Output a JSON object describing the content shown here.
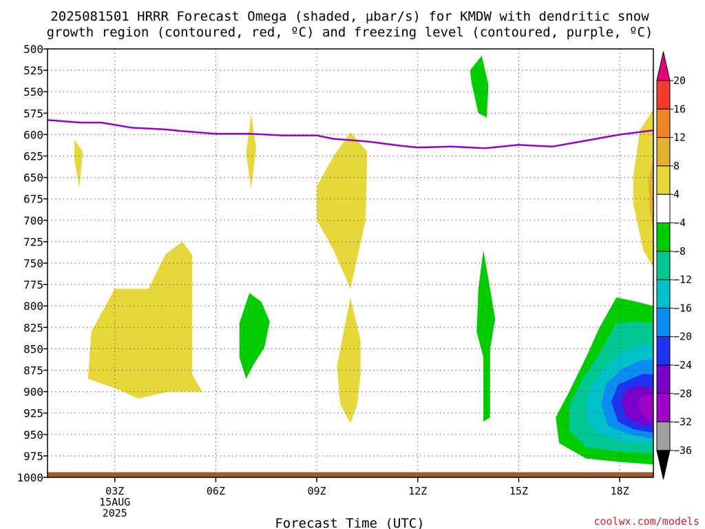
{
  "title_line1": "2025081501 HRRR Forecast Omega (shaded, µbar/s) for KMDW with dendritic snow",
  "title_line2": "growth region (contoured, red, ºC) and freezing level (contoured, purple, ºC)",
  "credit": "coolwx.com/models",
  "chart_data": {
    "type": "time-height",
    "xlabel": "Forecast Time (UTC)",
    "ylabel": "",
    "x_units": "forecast hours from 2025-08-15 00Z",
    "xlim": [
      1,
      19
    ],
    "ylim": [
      500,
      1000
    ],
    "y_scale": "pressure (linear, inverted)",
    "y_ticks": [
      500,
      525,
      550,
      575,
      600,
      625,
      650,
      675,
      700,
      725,
      750,
      775,
      800,
      825,
      850,
      875,
      900,
      925,
      950,
      975,
      1000
    ],
    "x_ticks": [
      {
        "x": 3,
        "lines": [
          "03Z",
          "15AUG",
          "2025"
        ]
      },
      {
        "x": 6,
        "lines": [
          "06Z"
        ]
      },
      {
        "x": 9,
        "lines": [
          "09Z"
        ]
      },
      {
        "x": 12,
        "lines": [
          "12Z"
        ]
      },
      {
        "x": 15,
        "lines": [
          "15Z"
        ]
      },
      {
        "x": 18,
        "lines": [
          "18Z"
        ]
      }
    ],
    "grid": true,
    "colorbar": {
      "units": "µbar/s",
      "labels": [
        "20",
        "16",
        "12",
        "8",
        "4",
        "−4",
        "−8",
        "−12",
        "−16",
        "−20",
        "−24",
        "−28",
        "−32",
        "−36"
      ],
      "bins": [
        {
          "min": 20,
          "max": 99,
          "color": "#e8007a"
        },
        {
          "min": 16,
          "max": 20,
          "color": "#f03c2c"
        },
        {
          "min": 12,
          "max": 16,
          "color": "#f08428"
        },
        {
          "min": 8,
          "max": 12,
          "color": "#e0b030"
        },
        {
          "min": 4,
          "max": 8,
          "color": "#e6d83a"
        },
        {
          "min": -4,
          "max": 4,
          "color": "#ffffff"
        },
        {
          "min": -8,
          "max": -4,
          "color": "#00cc00"
        },
        {
          "min": -12,
          "max": -8,
          "color": "#00c890"
        },
        {
          "min": -16,
          "max": -12,
          "color": "#00c0c8"
        },
        {
          "min": -20,
          "max": -16,
          "color": "#0a8cf0"
        },
        {
          "min": -24,
          "max": -20,
          "color": "#1e32f0"
        },
        {
          "min": -28,
          "max": -24,
          "color": "#7800c8"
        },
        {
          "min": -32,
          "max": -28,
          "color": "#a000c8"
        },
        {
          "min": -36,
          "max": -32,
          "color": "#a0a0a0"
        },
        {
          "min": -99,
          "max": -36,
          "color": "#000000"
        }
      ]
    },
    "freezing_level": {
      "color": "#9900cc",
      "points": [
        [
          1,
          583
        ],
        [
          2,
          586
        ],
        [
          2.6,
          586
        ],
        [
          3.5,
          592
        ],
        [
          4.5,
          594
        ],
        [
          5,
          596
        ],
        [
          6,
          599
        ],
        [
          7,
          599
        ],
        [
          7.5,
          600
        ],
        [
          8,
          601
        ],
        [
          9,
          601
        ],
        [
          9.5,
          605
        ],
        [
          10.5,
          608
        ],
        [
          11.5,
          613
        ],
        [
          12,
          615
        ],
        [
          13,
          614
        ],
        [
          14,
          616
        ],
        [
          14.5,
          614
        ],
        [
          15,
          612
        ],
        [
          15.5,
          613
        ],
        [
          16,
          614
        ],
        [
          17,
          607
        ],
        [
          18,
          600
        ],
        [
          19,
          595
        ]
      ]
    },
    "shaded_regions": [
      {
        "value": 6,
        "points": [
          [
            1.8,
            606
          ],
          [
            2.05,
            620
          ],
          [
            1.95,
            662
          ],
          [
            1.8,
            630
          ]
        ]
      },
      {
        "value": 6,
        "points": [
          [
            7.05,
            576
          ],
          [
            7.2,
            615
          ],
          [
            7.05,
            664
          ],
          [
            6.9,
            622
          ]
        ]
      },
      {
        "value": 6,
        "points": [
          [
            3,
            780
          ],
          [
            4,
            780
          ],
          [
            4.5,
            740
          ],
          [
            5,
            725
          ],
          [
            5.3,
            740
          ],
          [
            5.3,
            880
          ],
          [
            5.6,
            900
          ],
          [
            4.6,
            900
          ],
          [
            3.7,
            908
          ],
          [
            3,
            896
          ],
          [
            2.2,
            885
          ],
          [
            2.3,
            830
          ]
        ]
      },
      {
        "value": 6,
        "points": [
          [
            9,
            660
          ],
          [
            9.5,
            625
          ],
          [
            10,
            597
          ],
          [
            10.5,
            620
          ],
          [
            10.45,
            700
          ],
          [
            10,
            780
          ],
          [
            9.5,
            735
          ],
          [
            9,
            700
          ]
        ]
      },
      {
        "value": 6,
        "points": [
          [
            10,
            790
          ],
          [
            10.3,
            840
          ],
          [
            10.3,
            880
          ],
          [
            10.2,
            915
          ],
          [
            10,
            937
          ],
          [
            9.7,
            915
          ],
          [
            9.6,
            870
          ],
          [
            9.8,
            830
          ]
        ]
      },
      {
        "value": 6,
        "points": [
          [
            19,
            570
          ],
          [
            19,
            755
          ],
          [
            18.7,
            735
          ],
          [
            18.4,
            680
          ],
          [
            18.4,
            650
          ],
          [
            18.6,
            595
          ]
        ]
      },
      {
        "value": 10,
        "points": [
          [
            19,
            625
          ],
          [
            19,
            715
          ],
          [
            18.9,
            690
          ],
          [
            18.85,
            655
          ]
        ]
      },
      {
        "value": -6,
        "points": [
          [
            13.9,
            508
          ],
          [
            14.1,
            542
          ],
          [
            14.05,
            580
          ],
          [
            13.8,
            575
          ],
          [
            13.6,
            540
          ],
          [
            13.55,
            525
          ]
        ]
      },
      {
        "value": -6,
        "points": [
          [
            7,
            785
          ],
          [
            7.35,
            795
          ],
          [
            7.6,
            818
          ],
          [
            7.45,
            848
          ],
          [
            7.1,
            870
          ],
          [
            6.9,
            885
          ],
          [
            6.7,
            860
          ],
          [
            6.7,
            820
          ]
        ]
      },
      {
        "value": -6,
        "points": [
          [
            13.95,
            735
          ],
          [
            14.15,
            780
          ],
          [
            14.3,
            815
          ],
          [
            14.15,
            850
          ],
          [
            14.15,
            930
          ],
          [
            13.95,
            935
          ],
          [
            13.95,
            860
          ],
          [
            13.75,
            830
          ],
          [
            13.8,
            780
          ]
        ]
      },
      {
        "value": -6,
        "points": [
          [
            19,
            800
          ],
          [
            19,
            985
          ],
          [
            18,
            982
          ],
          [
            17,
            978
          ],
          [
            16.2,
            960
          ],
          [
            16.1,
            930
          ],
          [
            16.5,
            900
          ],
          [
            17,
            860
          ],
          [
            17.4,
            825
          ],
          [
            17.9,
            790
          ],
          [
            18.5,
            795
          ]
        ]
      },
      {
        "value": -10,
        "points": [
          [
            19,
            820
          ],
          [
            19,
            972
          ],
          [
            18,
            970
          ],
          [
            17,
            965
          ],
          [
            16.5,
            945
          ],
          [
            16.5,
            915
          ],
          [
            16.9,
            885
          ],
          [
            17.4,
            855
          ],
          [
            17.9,
            820
          ],
          [
            18.5,
            818
          ]
        ]
      },
      {
        "value": -14,
        "points": [
          [
            19,
            845
          ],
          [
            19,
            962
          ],
          [
            18,
            958
          ],
          [
            17.3,
            948
          ],
          [
            17.0,
            930
          ],
          [
            17.05,
            900
          ],
          [
            17.5,
            875
          ],
          [
            18,
            855
          ],
          [
            18.5,
            846
          ]
        ]
      },
      {
        "value": -18,
        "points": [
          [
            19,
            862
          ],
          [
            19,
            955
          ],
          [
            18.3,
            950
          ],
          [
            17.65,
            940
          ],
          [
            17.45,
            915
          ],
          [
            17.6,
            890
          ],
          [
            18.1,
            873
          ],
          [
            18.6,
            864
          ]
        ]
      },
      {
        "value": -22,
        "points": [
          [
            19,
            880
          ],
          [
            19,
            948
          ],
          [
            18.4,
            944
          ],
          [
            17.95,
            935
          ],
          [
            17.75,
            912
          ],
          [
            17.95,
            892
          ],
          [
            18.4,
            884
          ],
          [
            18.7,
            879
          ]
        ]
      },
      {
        "value": -26,
        "points": [
          [
            19,
            896
          ],
          [
            19,
            940
          ],
          [
            18.6,
            938
          ],
          [
            18.2,
            930
          ],
          [
            18.05,
            912
          ],
          [
            18.2,
            898
          ],
          [
            18.6,
            893
          ]
        ]
      },
      {
        "value": -30,
        "points": [
          [
            19,
            905
          ],
          [
            19,
            933
          ],
          [
            18.75,
            930
          ],
          [
            18.55,
            918
          ],
          [
            18.6,
            907
          ],
          [
            18.8,
            904
          ]
        ]
      }
    ],
    "ground": {
      "color": "#a05a2c",
      "pressure": 994
    }
  }
}
